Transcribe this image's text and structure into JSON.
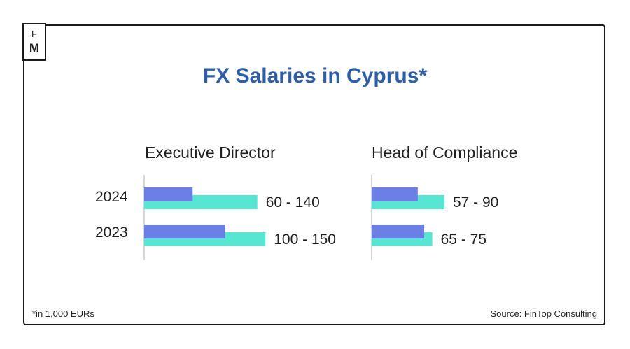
{
  "logo": {
    "line1": "F",
    "line2": "M"
  },
  "title": "FX Salaries in Cyprus*",
  "footnote": "*in 1,000 EURs",
  "source": "Source: FinTop Consulting",
  "colors": {
    "title": "#2f5ea8",
    "min_bar": "#6b7fe6",
    "max_bar": "#56e6d2",
    "axis": "#c9c9c9"
  },
  "chart_data": [
    {
      "type": "bar",
      "title": "Executive Director",
      "categories": [
        "2024",
        "2023"
      ],
      "series": [
        {
          "values": [
            60,
            100
          ],
          "color": "#6b7fe6"
        },
        {
          "values": [
            140,
            150
          ],
          "color": "#56e6d2"
        }
      ],
      "labels": [
        "60 - 140",
        "100 - 150"
      ],
      "xlim": [
        0,
        150
      ]
    },
    {
      "type": "bar",
      "title": "Head of Compliance",
      "categories": [
        "2024",
        "2023"
      ],
      "series": [
        {
          "values": [
            57,
            65
          ],
          "color": "#6b7fe6"
        },
        {
          "values": [
            90,
            75
          ],
          "color": "#56e6d2"
        }
      ],
      "labels": [
        "57 - 90",
        "65 - 75"
      ],
      "xlim": [
        0,
        150
      ]
    }
  ]
}
